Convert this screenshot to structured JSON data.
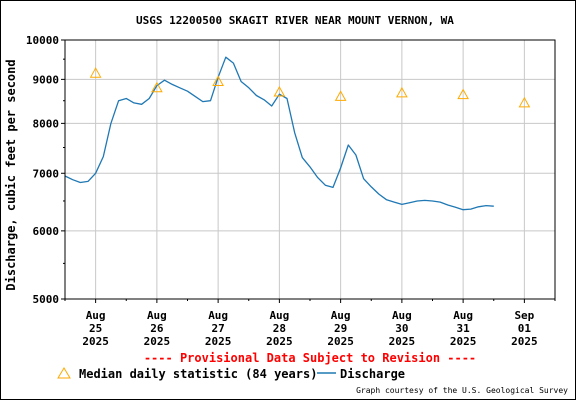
{
  "chart_data": {
    "type": "line",
    "title": "USGS 12200500 SKAGIT RIVER NEAR MOUNT VERNON, WA",
    "ylabel": "Discharge, cubic feet per second",
    "xlabel": "",
    "y_scale": "log",
    "ylim": [
      5000,
      10000
    ],
    "y_ticks": [
      "5000",
      "6000",
      "7000",
      "8000",
      "9000",
      "10000"
    ],
    "y_tick_values": [
      5000,
      6000,
      7000,
      8000,
      9000,
      10000
    ],
    "xlim": [
      "2025-08-24T12:00",
      "2025-09-01T12:00"
    ],
    "x_ticks": [
      {
        "month": "Aug",
        "day": "25",
        "year": "2025"
      },
      {
        "month": "Aug",
        "day": "26",
        "year": "2025"
      },
      {
        "month": "Aug",
        "day": "27",
        "year": "2025"
      },
      {
        "month": "Aug",
        "day": "28",
        "year": "2025"
      },
      {
        "month": "Aug",
        "day": "29",
        "year": "2025"
      },
      {
        "month": "Aug",
        "day": "30",
        "year": "2025"
      },
      {
        "month": "Aug",
        "day": "31",
        "year": "2025"
      },
      {
        "month": "Sep",
        "day": "01",
        "year": "2025"
      }
    ],
    "grid": true,
    "legend_position": "bottom",
    "series": [
      {
        "name": "Median daily statistic (84 years)",
        "kind": "marker",
        "color": "#ffaa00",
        "points": [
          {
            "x": "2025-08-25T00:00",
            "y": 9150
          },
          {
            "x": "2025-08-26T00:00",
            "y": 8800
          },
          {
            "x": "2025-08-27T00:00",
            "y": 8950
          },
          {
            "x": "2025-08-28T00:00",
            "y": 8700
          },
          {
            "x": "2025-08-29T00:00",
            "y": 8600
          },
          {
            "x": "2025-08-30T00:00",
            "y": 8680
          },
          {
            "x": "2025-08-31T00:00",
            "y": 8640
          },
          {
            "x": "2025-09-01T00:00",
            "y": 8450
          }
        ]
      },
      {
        "name": "Discharge",
        "kind": "line",
        "color": "#1f78b4",
        "points": [
          {
            "x": "2025-08-24T12:00",
            "y": 6950
          },
          {
            "x": "2025-08-24T15:00",
            "y": 6880
          },
          {
            "x": "2025-08-24T18:00",
            "y": 6830
          },
          {
            "x": "2025-08-24T21:00",
            "y": 6850
          },
          {
            "x": "2025-08-25T00:00",
            "y": 7000
          },
          {
            "x": "2025-08-25T03:00",
            "y": 7320
          },
          {
            "x": "2025-08-25T06:00",
            "y": 8000
          },
          {
            "x": "2025-08-25T09:00",
            "y": 8500
          },
          {
            "x": "2025-08-25T12:00",
            "y": 8550
          },
          {
            "x": "2025-08-25T15:00",
            "y": 8450
          },
          {
            "x": "2025-08-25T18:00",
            "y": 8420
          },
          {
            "x": "2025-08-25T21:00",
            "y": 8550
          },
          {
            "x": "2025-08-26T00:00",
            "y": 8850
          },
          {
            "x": "2025-08-26T03:00",
            "y": 8980
          },
          {
            "x": "2025-08-26T06:00",
            "y": 8880
          },
          {
            "x": "2025-08-26T09:00",
            "y": 8800
          },
          {
            "x": "2025-08-26T12:00",
            "y": 8720
          },
          {
            "x": "2025-08-26T15:00",
            "y": 8600
          },
          {
            "x": "2025-08-26T18:00",
            "y": 8480
          },
          {
            "x": "2025-08-26T21:00",
            "y": 8500
          },
          {
            "x": "2025-08-27T00:00",
            "y": 9050
          },
          {
            "x": "2025-08-27T03:00",
            "y": 9550
          },
          {
            "x": "2025-08-27T06:00",
            "y": 9400
          },
          {
            "x": "2025-08-27T09:00",
            "y": 8950
          },
          {
            "x": "2025-08-27T12:00",
            "y": 8800
          },
          {
            "x": "2025-08-27T15:00",
            "y": 8620
          },
          {
            "x": "2025-08-27T18:00",
            "y": 8520
          },
          {
            "x": "2025-08-27T21:00",
            "y": 8380
          },
          {
            "x": "2025-08-28T00:00",
            "y": 8650
          },
          {
            "x": "2025-08-28T03:00",
            "y": 8550
          },
          {
            "x": "2025-08-28T06:00",
            "y": 7800
          },
          {
            "x": "2025-08-28T09:00",
            "y": 7300
          },
          {
            "x": "2025-08-28T12:00",
            "y": 7120
          },
          {
            "x": "2025-08-28T15:00",
            "y": 6920
          },
          {
            "x": "2025-08-28T18:00",
            "y": 6780
          },
          {
            "x": "2025-08-28T21:00",
            "y": 6740
          },
          {
            "x": "2025-08-29T00:00",
            "y": 7100
          },
          {
            "x": "2025-08-29T03:00",
            "y": 7550
          },
          {
            "x": "2025-08-29T06:00",
            "y": 7350
          },
          {
            "x": "2025-08-29T09:00",
            "y": 6900
          },
          {
            "x": "2025-08-29T12:00",
            "y": 6750
          },
          {
            "x": "2025-08-29T15:00",
            "y": 6620
          },
          {
            "x": "2025-08-29T18:00",
            "y": 6520
          },
          {
            "x": "2025-08-29T21:00",
            "y": 6480
          },
          {
            "x": "2025-08-30T00:00",
            "y": 6440
          },
          {
            "x": "2025-08-30T03:00",
            "y": 6470
          },
          {
            "x": "2025-08-30T06:00",
            "y": 6500
          },
          {
            "x": "2025-08-30T09:00",
            "y": 6510
          },
          {
            "x": "2025-08-30T12:00",
            "y": 6500
          },
          {
            "x": "2025-08-30T15:00",
            "y": 6480
          },
          {
            "x": "2025-08-30T18:00",
            "y": 6430
          },
          {
            "x": "2025-08-30T21:00",
            "y": 6390
          },
          {
            "x": "2025-08-31T00:00",
            "y": 6350
          },
          {
            "x": "2025-08-31T03:00",
            "y": 6360
          },
          {
            "x": "2025-08-31T06:00",
            "y": 6400
          },
          {
            "x": "2025-08-31T09:00",
            "y": 6420
          },
          {
            "x": "2025-08-31T12:00",
            "y": 6410
          }
        ]
      }
    ],
    "provisional_note": "---- Provisional Data Subject to Revision ----",
    "credit": "Graph courtesy of the U.S. Geological Survey"
  }
}
